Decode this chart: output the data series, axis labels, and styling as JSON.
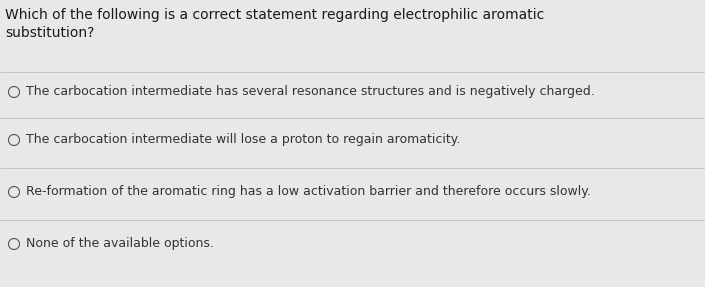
{
  "background_color": "#e8e8e8",
  "question": "Which of the following is a correct statement regarding electrophilic aromatic\nsubstitution?",
  "options": [
    "The carbocation intermediate has several resonance structures and is negatively charged.",
    "The carbocation intermediate will lose a proton to regain aromaticity.",
    "Re-formation of the aromatic ring has a low activation barrier and therefore occurs slowly.",
    "None of the available options."
  ],
  "question_fontsize": 10.0,
  "option_fontsize": 9.0,
  "question_color": "#1a1a1a",
  "option_color": "#333333",
  "circle_color": "#555555",
  "divider_color": "#c0c0c0",
  "fig_width": 7.05,
  "fig_height": 2.87,
  "dpi": 100
}
